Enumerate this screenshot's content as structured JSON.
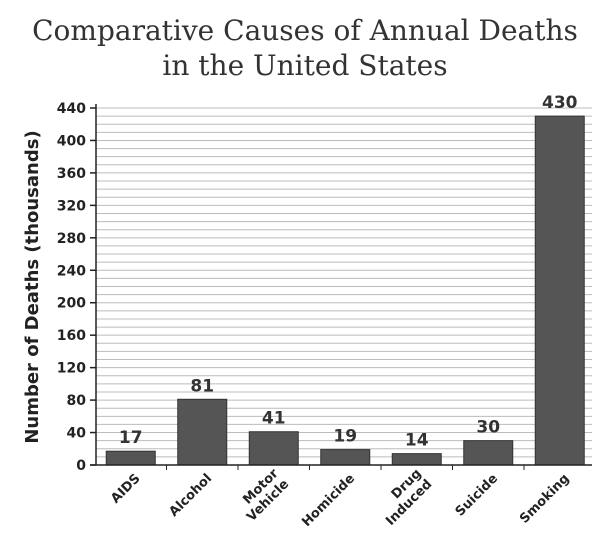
{
  "chart_data": {
    "type": "bar",
    "title_lines": [
      "Comparative Causes of Annual Deaths",
      "in the United States"
    ],
    "title": "Comparative Causes of Annual Deaths in the United States",
    "xlabel": "",
    "ylabel": "Number of Deaths (thousands)",
    "categories": [
      [
        "AIDS"
      ],
      [
        "Alcohol"
      ],
      [
        "Motor",
        "Vehicle"
      ],
      [
        "Homicide"
      ],
      [
        "Drug",
        "Induced"
      ],
      [
        "Suicide"
      ],
      [
        "Smoking"
      ]
    ],
    "values": [
      17,
      81,
      41,
      19,
      14,
      30,
      430
    ],
    "value_labels": [
      "17",
      "81",
      "41",
      "19",
      "14",
      "30",
      "430"
    ],
    "ylim": [
      0,
      440
    ],
    "y_ticks": [
      0,
      40,
      80,
      120,
      160,
      200,
      240,
      280,
      320,
      360,
      400,
      440
    ],
    "grid": true,
    "grid_minor_step": 10,
    "legend": "none",
    "colors": {
      "bar": "#555555",
      "bar_stroke": "#333333",
      "grid": "#bcbcbc",
      "axis": "#222222",
      "text": "#222222"
    }
  }
}
